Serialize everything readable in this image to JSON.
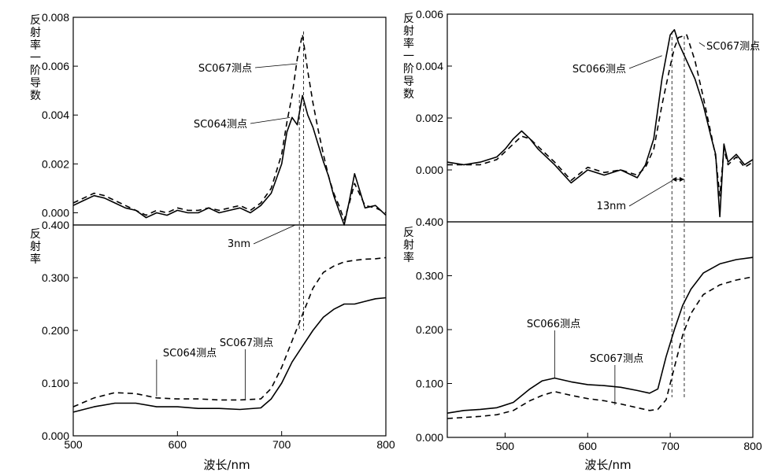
{
  "chart_data": [
    {
      "type": "line",
      "panel": "left-top",
      "ylabel": "反射率一阶导数",
      "xlim": [
        500,
        800
      ],
      "ylim": [
        -0.0005,
        0.008
      ],
      "yticks": [
        "0.000",
        "0.002",
        "0.004",
        "0.006",
        "0.008"
      ],
      "series": [
        {
          "name": "SC064测点",
          "style": "solid",
          "x": [
            500,
            510,
            520,
            530,
            540,
            550,
            560,
            570,
            580,
            590,
            600,
            610,
            620,
            630,
            640,
            650,
            660,
            670,
            680,
            690,
            700,
            705,
            710,
            715,
            720,
            725,
            730,
            735,
            740,
            745,
            750,
            755,
            760,
            765,
            770,
            780,
            790,
            800
          ],
          "y": [
            0.0003,
            0.0005,
            0.0007,
            0.0006,
            0.0004,
            0.0002,
            0.0001,
            -0.0002,
            0.0,
            -0.0001,
            0.0001,
            0.0,
            0.0,
            0.0002,
            0.0,
            0.0001,
            0.0002,
            0.0,
            0.0003,
            0.0008,
            0.002,
            0.0033,
            0.0039,
            0.0036,
            0.0048,
            0.004,
            0.0035,
            0.0028,
            0.0021,
            0.0015,
            0.0007,
            0.0001,
            -0.0006,
            0.0005,
            0.0016,
            0.0002,
            0.0003,
            -0.0001
          ]
        },
        {
          "name": "SC067测点",
          "style": "dashed",
          "x": [
            500,
            510,
            520,
            530,
            540,
            550,
            560,
            570,
            580,
            590,
            600,
            610,
            620,
            630,
            640,
            650,
            660,
            670,
            680,
            690,
            700,
            705,
            710,
            715,
            720,
            725,
            730,
            735,
            740,
            745,
            750,
            755,
            760,
            765,
            770,
            780,
            790,
            800
          ],
          "y": [
            0.0004,
            0.0006,
            0.0008,
            0.0007,
            0.0005,
            0.0003,
            0.0001,
            -0.0001,
            0.0001,
            0.0,
            0.0002,
            0.0001,
            0.0001,
            0.0002,
            0.0001,
            0.0002,
            0.0003,
            0.0001,
            0.0004,
            0.001,
            0.0024,
            0.0037,
            0.0048,
            0.0063,
            0.0073,
            0.0058,
            0.0045,
            0.0034,
            0.0024,
            0.0015,
            0.0008,
            0.0003,
            -0.0003,
            0.0004,
            0.0012,
            0.0003,
            0.0002,
            0.0
          ]
        }
      ],
      "annotations": [
        {
          "text": "SC067测点",
          "x": 715,
          "y": 0.0061
        },
        {
          "text": "SC064测点",
          "x": 708,
          "y": 0.0039
        }
      ]
    },
    {
      "type": "line",
      "panel": "left-bottom",
      "ylabel": "反射率",
      "xlabel": "波长/nm",
      "xlim": [
        500,
        800
      ],
      "ylim": [
        0.0,
        0.4
      ],
      "xticks": [
        "500",
        "600",
        "700",
        "800"
      ],
      "yticks": [
        "0.000",
        "0.100",
        "0.200",
        "0.300",
        "0.400"
      ],
      "series": [
        {
          "name": "SC064测点",
          "style": "solid",
          "x": [
            500,
            520,
            540,
            560,
            580,
            600,
            620,
            640,
            660,
            680,
            690,
            700,
            710,
            720,
            730,
            740,
            750,
            760,
            770,
            780,
            790,
            800
          ],
          "y": [
            0.045,
            0.055,
            0.062,
            0.062,
            0.055,
            0.055,
            0.052,
            0.052,
            0.05,
            0.053,
            0.07,
            0.1,
            0.14,
            0.17,
            0.2,
            0.225,
            0.24,
            0.25,
            0.25,
            0.255,
            0.26,
            0.262
          ]
        },
        {
          "name": "SC067测点",
          "style": "dashed",
          "x": [
            500,
            520,
            540,
            560,
            580,
            600,
            620,
            640,
            660,
            680,
            690,
            700,
            710,
            720,
            730,
            740,
            750,
            760,
            770,
            780,
            790,
            800
          ],
          "y": [
            0.055,
            0.072,
            0.082,
            0.08,
            0.072,
            0.07,
            0.07,
            0.068,
            0.068,
            0.07,
            0.09,
            0.13,
            0.18,
            0.23,
            0.28,
            0.31,
            0.322,
            0.33,
            0.333,
            0.335,
            0.336,
            0.338
          ]
        }
      ],
      "annotations": [
        {
          "text": "3nm",
          "x": 715,
          "y": 0.4
        },
        {
          "text": "SC064测点",
          "x": 580,
          "y": 0.075
        },
        {
          "text": "SC067测点",
          "x": 665,
          "y": 0.07
        }
      ]
    },
    {
      "type": "line",
      "panel": "right-top",
      "ylabel": "反射率一阶导数",
      "xlim": [
        430,
        800
      ],
      "ylim": [
        -0.002,
        0.006
      ],
      "yticks": [
        "0.000",
        "0.002",
        "0.004",
        "0.006"
      ],
      "series": [
        {
          "name": "SC066测点",
          "style": "solid",
          "x": [
            430,
            450,
            470,
            490,
            500,
            510,
            520,
            530,
            540,
            560,
            580,
            600,
            620,
            640,
            660,
            670,
            680,
            690,
            700,
            705,
            710,
            720,
            730,
            740,
            750,
            755,
            760,
            765,
            770,
            780,
            790,
            800
          ],
          "y": [
            0.0003,
            0.0002,
            0.0003,
            0.0005,
            0.0008,
            0.0012,
            0.0015,
            0.0012,
            0.0008,
            0.0002,
            -0.0005,
            0.0,
            -0.0002,
            0.0,
            -0.0003,
            0.0002,
            0.0012,
            0.0035,
            0.0052,
            0.0054,
            0.0049,
            0.0042,
            0.0035,
            0.0025,
            0.0012,
            0.0006,
            -0.0018,
            0.001,
            0.0003,
            0.0006,
            0.0002,
            0.0004
          ]
        },
        {
          "name": "SC067测点",
          "style": "dashed",
          "x": [
            430,
            450,
            470,
            490,
            500,
            510,
            520,
            530,
            540,
            560,
            580,
            600,
            620,
            640,
            660,
            670,
            680,
            690,
            700,
            705,
            710,
            720,
            730,
            740,
            750,
            755,
            760,
            765,
            770,
            780,
            790,
            800
          ],
          "y": [
            0.0002,
            0.0002,
            0.0002,
            0.0004,
            0.0007,
            0.001,
            0.0013,
            0.0012,
            0.0009,
            0.0003,
            -0.0004,
            0.0001,
            -0.0001,
            0.0,
            -0.0002,
            0.0001,
            0.0008,
            0.0025,
            0.004,
            0.0047,
            0.0051,
            0.0052,
            0.0042,
            0.0028,
            0.0013,
            0.0005,
            -0.001,
            0.0008,
            0.0002,
            0.0005,
            0.0001,
            0.0003
          ]
        }
      ],
      "annotations": [
        {
          "text": "SC067测点",
          "x": 735,
          "y": 0.0049
        },
        {
          "text": "SC066测点",
          "x": 690,
          "y": 0.0044
        },
        {
          "text": "13nm",
          "x": 710,
          "y": -0.0004
        }
      ]
    },
    {
      "type": "line",
      "panel": "right-bottom",
      "ylabel": "反射率",
      "xlabel": "波长/nm",
      "xlim": [
        430,
        800
      ],
      "ylim": [
        0.0,
        0.4
      ],
      "xticks": [
        "500",
        "600",
        "700",
        "800"
      ],
      "yticks": [
        "0.000",
        "0.100",
        "0.200",
        "0.300",
        "0.400"
      ],
      "series": [
        {
          "name": "SC066测点",
          "style": "solid",
          "x": [
            430,
            450,
            470,
            490,
            510,
            530,
            545,
            560,
            580,
            600,
            620,
            640,
            660,
            675,
            685,
            695,
            705,
            715,
            725,
            740,
            760,
            780,
            800
          ],
          "y": [
            0.045,
            0.05,
            0.052,
            0.055,
            0.065,
            0.09,
            0.105,
            0.11,
            0.103,
            0.098,
            0.096,
            0.093,
            0.087,
            0.082,
            0.09,
            0.15,
            0.2,
            0.245,
            0.275,
            0.305,
            0.322,
            0.33,
            0.334
          ]
        },
        {
          "name": "SC067测点",
          "style": "dashed",
          "x": [
            430,
            450,
            470,
            490,
            510,
            530,
            545,
            560,
            580,
            600,
            620,
            640,
            660,
            675,
            685,
            695,
            705,
            715,
            725,
            740,
            760,
            780,
            800
          ],
          "y": [
            0.035,
            0.037,
            0.039,
            0.042,
            0.05,
            0.068,
            0.078,
            0.085,
            0.078,
            0.072,
            0.068,
            0.062,
            0.055,
            0.05,
            0.052,
            0.07,
            0.13,
            0.19,
            0.23,
            0.265,
            0.283,
            0.292,
            0.298
          ]
        }
      ],
      "annotations": [
        {
          "text": "SC066测点",
          "x": 560,
          "y": 0.11
        },
        {
          "text": "SC067测点",
          "x": 633,
          "y": 0.095
        }
      ]
    }
  ]
}
